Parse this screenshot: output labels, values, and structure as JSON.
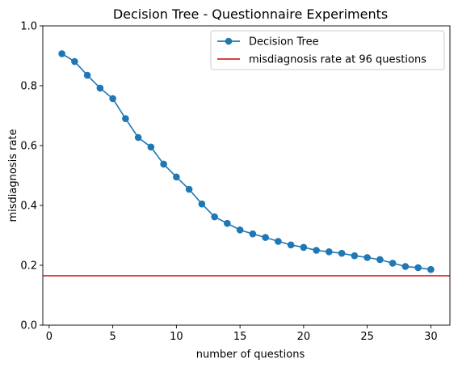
{
  "chart_data": {
    "type": "line",
    "title": "Decision Tree - Questionnaire Experiments",
    "xlabel": "number of questions",
    "ylabel": "misdiagnosis rate",
    "xlim": [
      -0.5,
      31.5
    ],
    "ylim": [
      0.0,
      1.0
    ],
    "xticks": [
      "0",
      "5",
      "10",
      "15",
      "20",
      "25",
      "30"
    ],
    "yticks": [
      "0.0",
      "0.2",
      "0.4",
      "0.6",
      "0.8",
      "1.0"
    ],
    "grid": false,
    "legend_position": "top-right",
    "series": [
      {
        "name": "Decision Tree",
        "color": "#1f77b4",
        "marker": "circle",
        "x": [
          1,
          2,
          3,
          4,
          5,
          6,
          7,
          8,
          9,
          10,
          11,
          12,
          13,
          14,
          15,
          16,
          17,
          18,
          19,
          20,
          21,
          22,
          23,
          24,
          25,
          26,
          27,
          28,
          29,
          30
        ],
        "y": [
          0.907,
          0.881,
          0.835,
          0.792,
          0.757,
          0.69,
          0.627,
          0.595,
          0.538,
          0.495,
          0.454,
          0.405,
          0.362,
          0.34,
          0.318,
          0.305,
          0.293,
          0.28,
          0.268,
          0.26,
          0.25,
          0.245,
          0.24,
          0.232,
          0.226,
          0.219,
          0.207,
          0.196,
          0.192,
          0.186
        ]
      }
    ],
    "reference_lines": [
      {
        "name": "misdiagnosis rate at 96 questions",
        "color": "#d62728",
        "y": 0.165
      }
    ]
  }
}
